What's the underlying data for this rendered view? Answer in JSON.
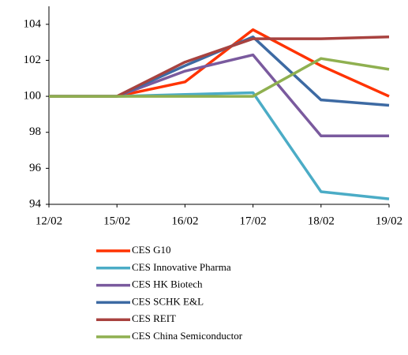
{
  "chart_data": {
    "type": "line",
    "categories": [
      "12/02",
      "15/02",
      "16/02",
      "17/02",
      "18/02",
      "19/02"
    ],
    "series": [
      {
        "name": "CES G10",
        "color": "#ff3300",
        "values": [
          100,
          100,
          100.8,
          103.7,
          101.7,
          100
        ]
      },
      {
        "name": "CES Innovative Pharma",
        "color": "#4bacc6",
        "values": [
          100,
          100,
          100.1,
          100.2,
          94.7,
          94.3
        ]
      },
      {
        "name": "CES HK Biotech",
        "color": "#7a5a9e",
        "values": [
          100,
          100,
          101.4,
          102.3,
          97.8,
          97.8
        ]
      },
      {
        "name": "CES SCHK E&L",
        "color": "#3d6aa3",
        "values": [
          100,
          100,
          101.7,
          103.3,
          99.8,
          99.5
        ]
      },
      {
        "name": "CES REIT",
        "color": "#a8423f",
        "values": [
          100,
          100,
          101.9,
          103.2,
          103.2,
          103.3
        ]
      },
      {
        "name": "CES China Semiconductor",
        "color": "#8fb050",
        "values": [
          100,
          100,
          100,
          100,
          102.1,
          101.5
        ]
      }
    ],
    "ylim": [
      94,
      105
    ],
    "yticks": [
      94,
      96,
      98,
      100,
      102,
      104
    ],
    "grid": false,
    "legend": "bottom"
  }
}
